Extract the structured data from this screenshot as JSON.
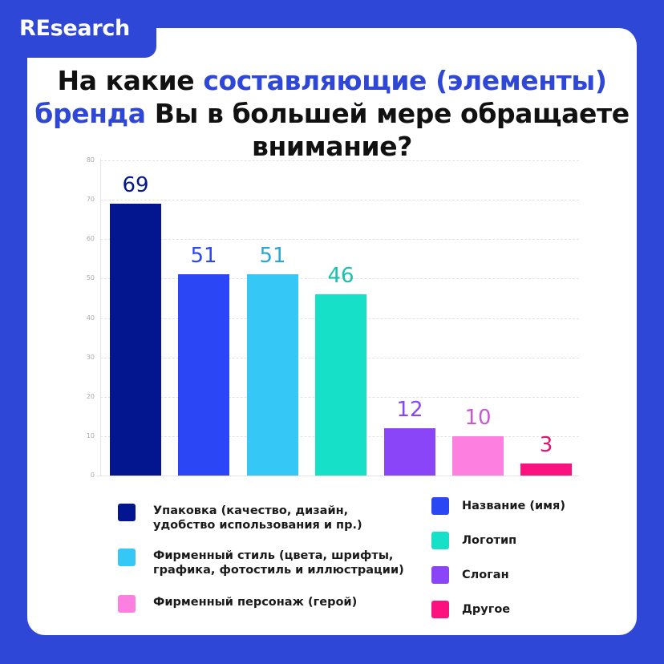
{
  "brand": "REsearch",
  "title": {
    "part1": "На какие ",
    "part2_highlight": "составляющие (элементы) бренда",
    "part3": " Вы в большей мере обращаете внимание?"
  },
  "colors": {
    "background": "#2f47d6",
    "card": "#ffffff",
    "highlight": "#2f47d6"
  },
  "chart_data": {
    "type": "bar",
    "title": "На какие составляющие (элементы) бренда Вы в большей мере обращаете внимание?",
    "xlabel": "",
    "ylabel": "",
    "ylim": [
      0,
      80
    ],
    "yticks": [
      0,
      10,
      20,
      30,
      40,
      50,
      60,
      70,
      80
    ],
    "grid": true,
    "legend_position": "bottom",
    "categories": [
      "Упаковка (качество, дизайн, удобство использования и пр.)",
      "Название (имя)",
      "Фирменный стиль (цвета, шрифты, графика, фотостиль и иллюстрации)",
      "Логотип",
      "Слоган",
      "Фирменный персонаж (герой)",
      "Другое"
    ],
    "values": [
      69,
      51,
      51,
      46,
      12,
      10,
      3
    ],
    "bar_colors": [
      "#03168f",
      "#2a46f5",
      "#35c8f7",
      "#17e0c8",
      "#8a45f8",
      "#fd80e0",
      "#fb127f"
    ],
    "label_colors": [
      "#03168f",
      "#2a46f5",
      "#2aa6d8",
      "#17c3aa",
      "#8a45f8",
      "#c85ad0",
      "#e0136f"
    ]
  },
  "legend": {
    "left": [
      {
        "label_line1": "Упаковка (качество, дизайн,",
        "label_line2": "удобство использования и пр.)",
        "color": "#03168f"
      },
      {
        "label_line1": "Фирменный стиль (цвета, шрифты,",
        "label_line2": "графика, фотостиль и иллюстрации)",
        "color": "#35c8f7"
      },
      {
        "label_line1": "Фирменный персонаж (герой)",
        "label_line2": "",
        "color": "#fd80e0"
      }
    ],
    "right": [
      {
        "label": "Название (имя)",
        "color": "#2a46f5"
      },
      {
        "label": "Логотип",
        "color": "#17e0c8"
      },
      {
        "label": "Слоган",
        "color": "#8a45f8"
      },
      {
        "label": "Другое",
        "color": "#fb127f"
      }
    ]
  }
}
